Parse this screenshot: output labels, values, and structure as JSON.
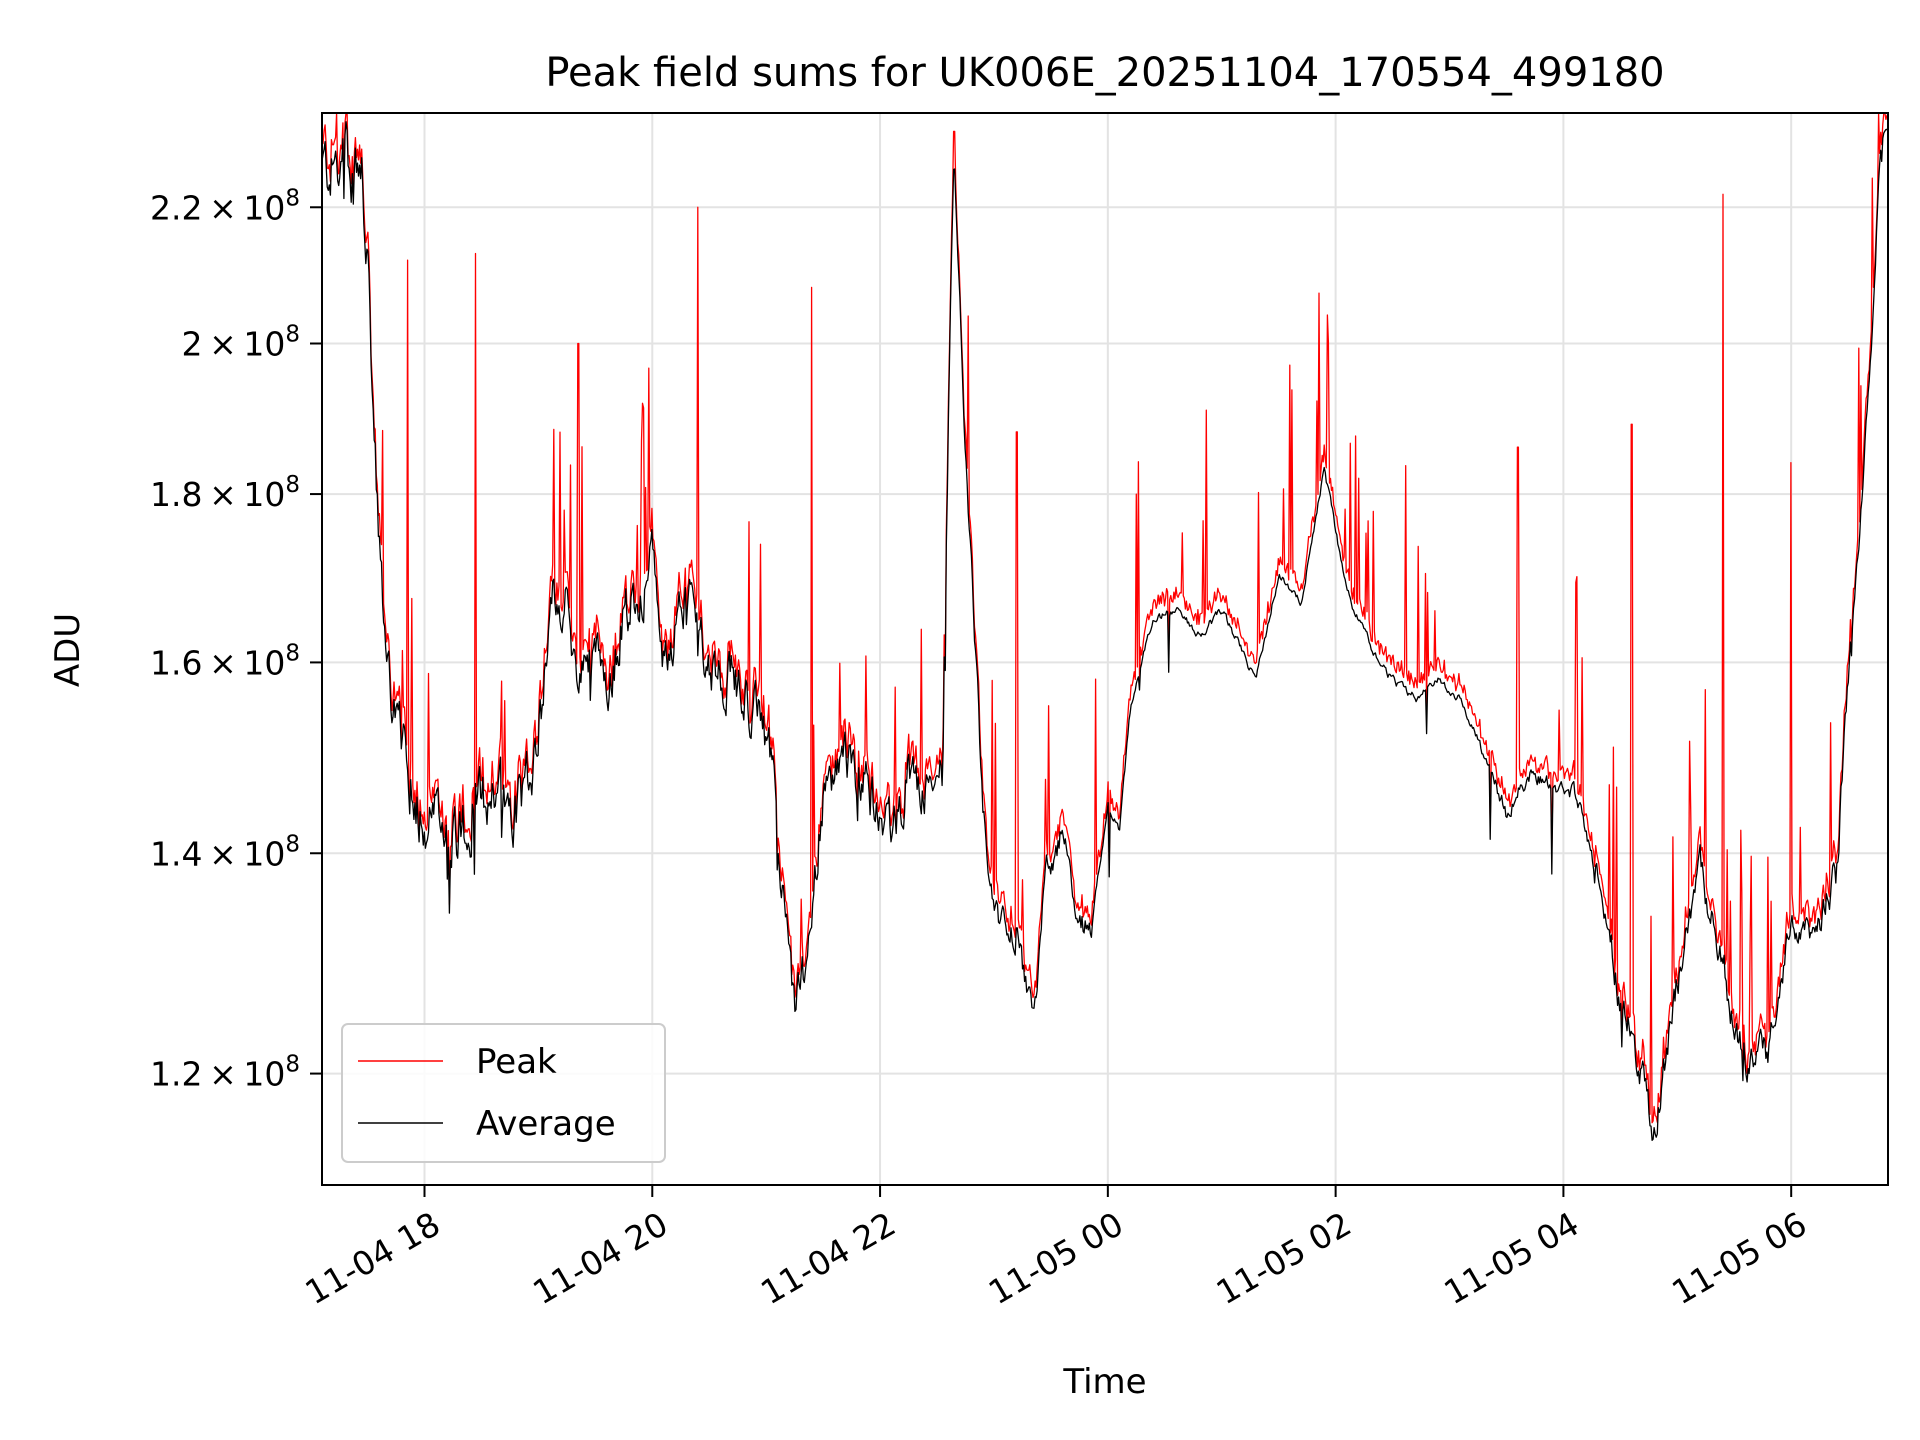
{
  "chart_data": {
    "type": "line",
    "title": "Peak field sums for UK006E_20251104_170554_499180",
    "xlabel": "Time",
    "ylabel": "ADU",
    "yscale": "log",
    "ylim": [
      111000000,
      235000000
    ],
    "xlim_hours": [
      -0.9,
      12.85
    ],
    "grid": true,
    "legend_position": "lower left",
    "x_ticks": [
      {
        "hour": 0,
        "label": "11-04 18"
      },
      {
        "hour": 2,
        "label": "11-04 20"
      },
      {
        "hour": 4,
        "label": "11-04 22"
      },
      {
        "hour": 6,
        "label": "11-05 00"
      },
      {
        "hour": 8,
        "label": "11-05 02"
      },
      {
        "hour": 10,
        "label": "11-05 04"
      },
      {
        "hour": 12,
        "label": "11-05 06"
      }
    ],
    "y_ticks": [
      {
        "value": 120000000,
        "mant": "1.2",
        "exp": "8"
      },
      {
        "value": 140000000,
        "mant": "1.4",
        "exp": "8"
      },
      {
        "value": 160000000,
        "mant": "1.6",
        "exp": "8"
      },
      {
        "value": 180000000,
        "mant": "1.8",
        "exp": "8"
      },
      {
        "value": 200000000,
        "mant": "2",
        "exp": "8"
      },
      {
        "value": 220000000,
        "mant": "2.2",
        "exp": "8"
      }
    ],
    "series": [
      {
        "name": "Peak",
        "color": "#ff0000"
      },
      {
        "name": "Average",
        "color": "#000000"
      }
    ],
    "average_trend": [
      [
        -0.9,
        2.26
      ],
      [
        -0.7,
        2.27
      ],
      [
        -0.55,
        2.25
      ],
      [
        -0.5,
        2.1
      ],
      [
        -0.45,
        1.9
      ],
      [
        -0.4,
        1.72
      ],
      [
        -0.3,
        1.58
      ],
      [
        -0.2,
        1.5
      ],
      [
        -0.1,
        1.46
      ],
      [
        0.0,
        1.44
      ],
      [
        0.2,
        1.42
      ],
      [
        0.4,
        1.43
      ],
      [
        0.6,
        1.47
      ],
      [
        0.8,
        1.45
      ],
      [
        0.9,
        1.48
      ],
      [
        1.0,
        1.52
      ],
      [
        1.1,
        1.66
      ],
      [
        1.25,
        1.67
      ],
      [
        1.35,
        1.58
      ],
      [
        1.5,
        1.62
      ],
      [
        1.6,
        1.55
      ],
      [
        1.75,
        1.66
      ],
      [
        1.9,
        1.68
      ],
      [
        2.0,
        1.72
      ],
      [
        2.1,
        1.6
      ],
      [
        2.3,
        1.68
      ],
      [
        2.5,
        1.6
      ],
      [
        2.7,
        1.58
      ],
      [
        2.9,
        1.55
      ],
      [
        3.05,
        1.5
      ],
      [
        3.15,
        1.35
      ],
      [
        3.25,
        1.25
      ],
      [
        3.35,
        1.3
      ],
      [
        3.5,
        1.45
      ],
      [
        3.7,
        1.5
      ],
      [
        3.9,
        1.46
      ],
      [
        4.1,
        1.42
      ],
      [
        4.25,
        1.48
      ],
      [
        4.4,
        1.46
      ],
      [
        4.55,
        1.48
      ],
      [
        4.65,
        2.3
      ],
      [
        4.75,
        1.85
      ],
      [
        4.9,
        1.45
      ],
      [
        5.0,
        1.34
      ],
      [
        5.2,
        1.32
      ],
      [
        5.35,
        1.24
      ],
      [
        5.45,
        1.38
      ],
      [
        5.6,
        1.42
      ],
      [
        5.75,
        1.34
      ],
      [
        5.85,
        1.32
      ],
      [
        6.0,
        1.45
      ],
      [
        6.1,
        1.42
      ],
      [
        6.2,
        1.55
      ],
      [
        6.4,
        1.65
      ],
      [
        6.6,
        1.66
      ],
      [
        6.8,
        1.63
      ],
      [
        7.0,
        1.66
      ],
      [
        7.3,
        1.58
      ],
      [
        7.5,
        1.7
      ],
      [
        7.7,
        1.67
      ],
      [
        7.9,
        1.83
      ],
      [
        8.1,
        1.68
      ],
      [
        8.3,
        1.62
      ],
      [
        8.5,
        1.58
      ],
      [
        8.7,
        1.56
      ],
      [
        8.9,
        1.58
      ],
      [
        9.1,
        1.56
      ],
      [
        9.3,
        1.5
      ],
      [
        9.5,
        1.44
      ],
      [
        9.7,
        1.48
      ],
      [
        9.9,
        1.47
      ],
      [
        10.1,
        1.46
      ],
      [
        10.3,
        1.38
      ],
      [
        10.5,
        1.26
      ],
      [
        10.7,
        1.2
      ],
      [
        10.8,
        1.15
      ],
      [
        11.0,
        1.28
      ],
      [
        11.2,
        1.38
      ],
      [
        11.4,
        1.3
      ],
      [
        11.5,
        1.24
      ],
      [
        11.6,
        1.21
      ],
      [
        11.8,
        1.22
      ],
      [
        12.0,
        1.33
      ],
      [
        12.2,
        1.32
      ],
      [
        12.4,
        1.38
      ],
      [
        12.5,
        1.58
      ],
      [
        12.6,
        1.75
      ],
      [
        12.7,
        1.98
      ],
      [
        12.78,
        2.28
      ],
      [
        12.85,
        2.34
      ]
    ],
    "notable_spikes_hours_x1e8": [
      [
        -0.15,
        2.12
      ],
      [
        0.45,
        2.13
      ],
      [
        1.35,
        2.0
      ],
      [
        2.4,
        2.2
      ],
      [
        3.4,
        2.08
      ],
      [
        4.65,
        2.32
      ],
      [
        5.2,
        1.88
      ],
      [
        6.25,
        1.8
      ],
      [
        7.6,
        1.97
      ],
      [
        8.2,
        1.82
      ],
      [
        9.6,
        1.86
      ],
      [
        10.6,
        1.89
      ],
      [
        11.4,
        2.22
      ],
      [
        12.0,
        1.84
      ]
    ]
  }
}
